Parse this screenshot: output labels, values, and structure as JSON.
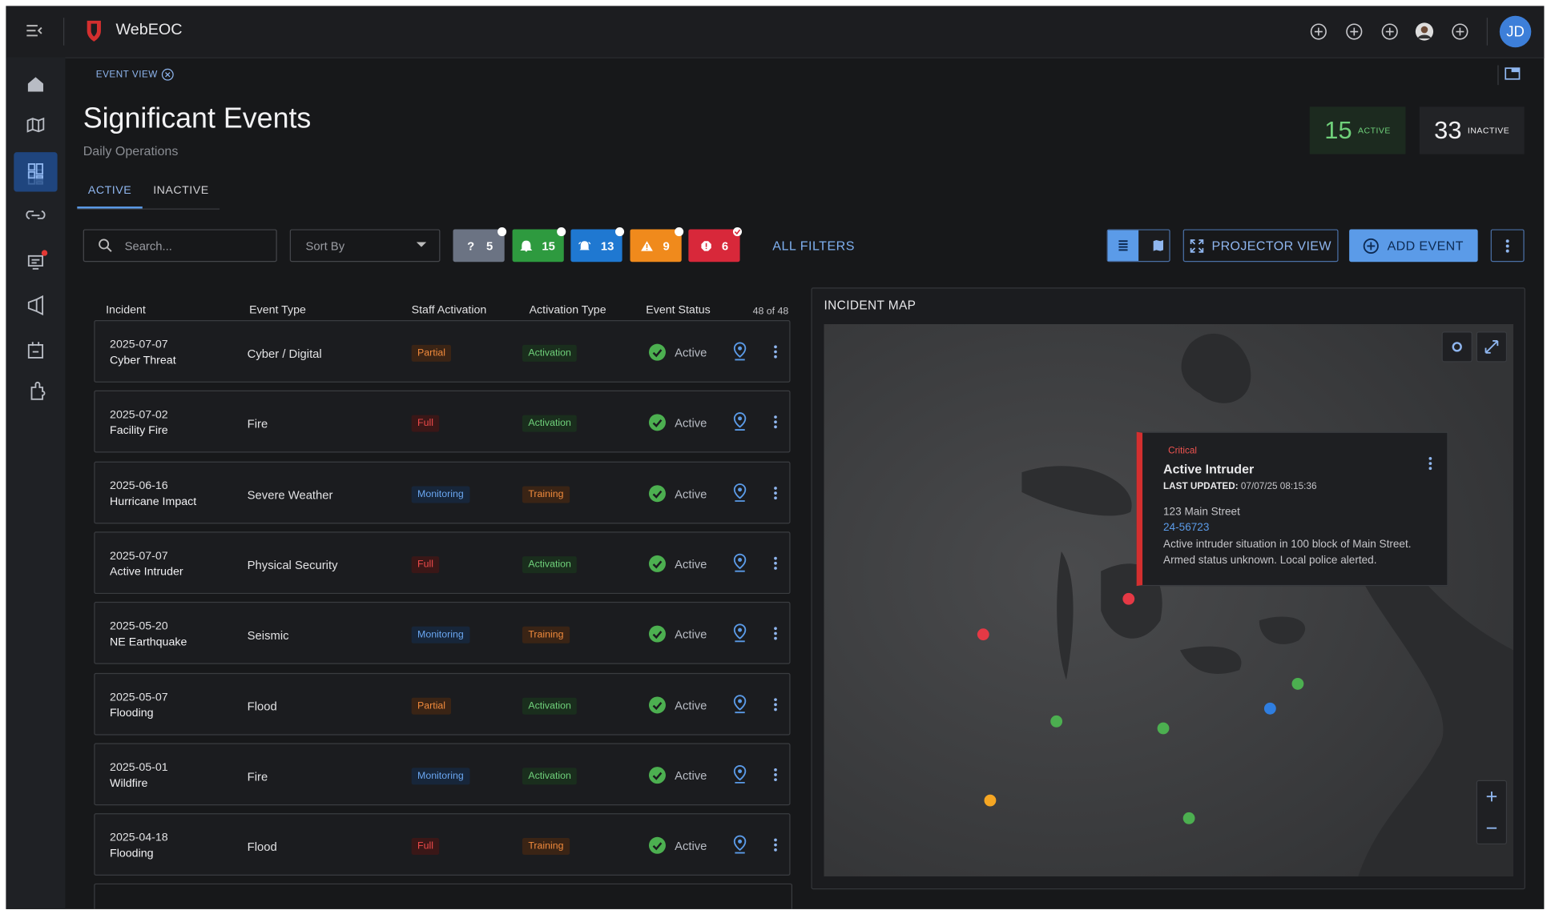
{
  "app": {
    "brand": "WebEOC",
    "avatar": "JD"
  },
  "breadcrumb": "EVENT VIEW",
  "header": {
    "title": "Significant Events",
    "subtitle": "Daily Operations"
  },
  "counters": [
    {
      "value": "15",
      "label": "ACTIVE"
    },
    {
      "value": "33",
      "label": "INACTIVE"
    }
  ],
  "tabs": [
    "ACTIVE",
    "INACTIVE"
  ],
  "toolbar": {
    "search_placeholder": "Search...",
    "sort": "Sort By",
    "filters": [
      "5",
      "15",
      "13",
      "9",
      "6"
    ],
    "all_filters": "ALL FILTERS",
    "projector": "PROJECTOR VIEW",
    "add": "ADD EVENT"
  },
  "table": {
    "columns": [
      "Incident",
      "Event Type",
      "Staff Activation",
      "Activation Type",
      "Event Status"
    ],
    "count": "48 of 48",
    "rows": [
      {
        "date": "2025-07-07",
        "name": "Cyber Threat",
        "type": "Cyber / Digital",
        "staff": "Partial",
        "activation": "Activation",
        "status": "Active"
      },
      {
        "date": "2025-07-02",
        "name": "Facility Fire",
        "type": "Fire",
        "staff": "Full",
        "activation": "Activation",
        "status": "Active"
      },
      {
        "date": "2025-06-16",
        "name": "Hurricane Impact",
        "type": "Severe Weather",
        "staff": "Monitoring",
        "activation": "Training",
        "status": "Active"
      },
      {
        "date": "2025-07-07",
        "name": "Active Intruder",
        "type": "Physical Security",
        "staff": "Full",
        "activation": "Activation",
        "status": "Active"
      },
      {
        "date": "2025-05-20",
        "name": "NE Earthquake",
        "type": "Seismic",
        "staff": "Monitoring",
        "activation": "Training",
        "status": "Active"
      },
      {
        "date": "2025-05-07",
        "name": "Flooding",
        "type": "Flood",
        "staff": "Partial",
        "activation": "Activation",
        "status": "Active"
      },
      {
        "date": "2025-05-01",
        "name": "Wildfire",
        "type": "Fire",
        "staff": "Monitoring",
        "activation": "Activation",
        "status": "Active"
      },
      {
        "date": "2025-04-18",
        "name": "Flooding",
        "type": "Flood",
        "staff": "Full",
        "activation": "Training",
        "status": "Active"
      }
    ]
  },
  "map": {
    "title": "INCIDENT MAP",
    "popup": {
      "severity": "Critical",
      "title": "Active Intruder",
      "updated_label": "LAST UPDATED:",
      "updated": "07/07/25 08:15:36",
      "address": "123 Main Street",
      "id": "24-56723",
      "description": "Active intruder situation in 100 block of Main Street. Armed status unknown.  Local police alerted."
    }
  }
}
